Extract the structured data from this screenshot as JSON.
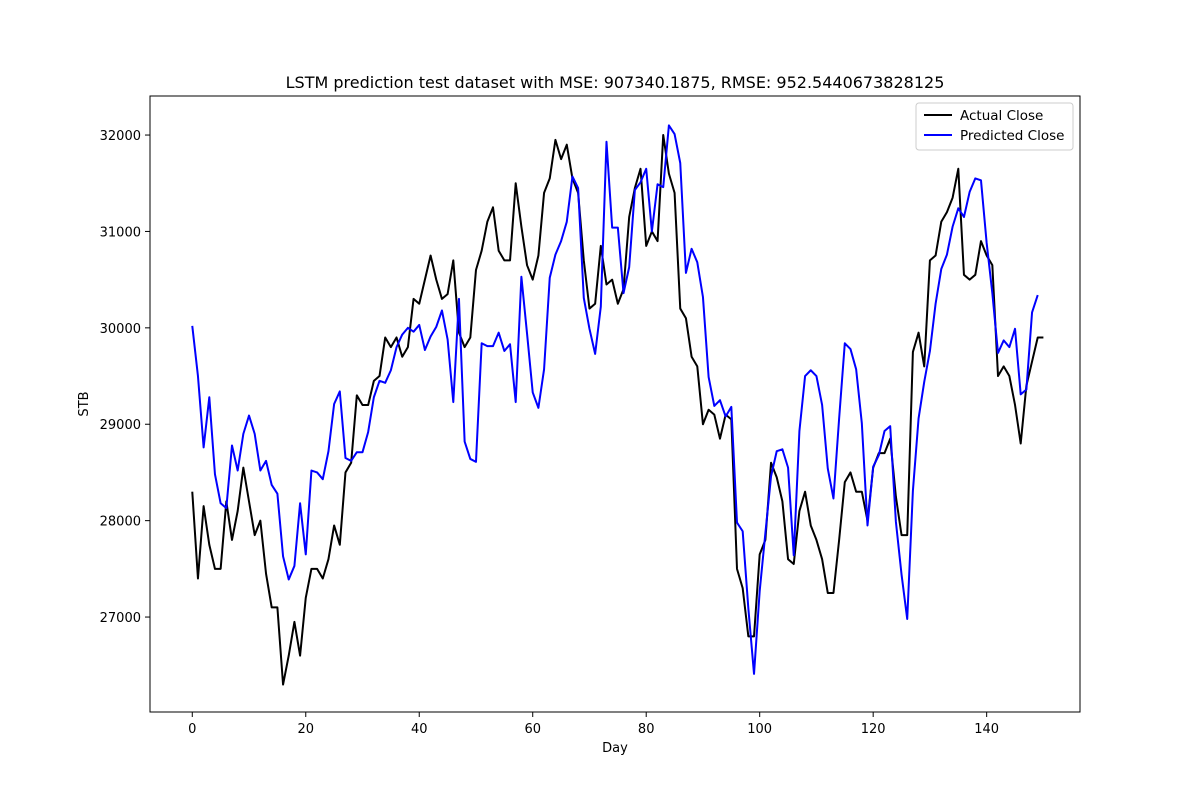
{
  "chart_data": {
    "type": "line",
    "title": "LSTM prediction test dataset with MSE: 907340.1875, RMSE: 952.5440673828125",
    "xlabel": "Day",
    "ylabel": "STB",
    "xlim": [
      -7.45,
      156.45
    ],
    "ylim": [
      26015,
      32405
    ],
    "xticks": [
      0,
      20,
      40,
      60,
      80,
      100,
      120,
      140
    ],
    "yticks": [
      27000,
      28000,
      29000,
      30000,
      31000,
      32000
    ],
    "grid": false,
    "legend_position": "top-right",
    "series": [
      {
        "name": "Actual Close",
        "color": "#000000",
        "values": [
          28300,
          27400,
          28150,
          27750,
          27500,
          27500,
          28200,
          27800,
          28100,
          28550,
          28200,
          27850,
          28000,
          27450,
          27100,
          27100,
          26300,
          26600,
          26950,
          26600,
          27200,
          27500,
          27500,
          27400,
          27600,
          27950,
          27750,
          28500,
          28600,
          29300,
          29200,
          29200,
          29450,
          29500,
          29900,
          29800,
          29900,
          29700,
          29800,
          30300,
          30250,
          30500,
          30750,
          30500,
          30300,
          30350,
          30700,
          29950,
          29800,
          29900,
          30600,
          30800,
          31100,
          31250,
          30800,
          30700,
          30700,
          31500,
          31050,
          30650,
          30500,
          30750,
          31400,
          31550,
          31950,
          31750,
          31900,
          31550,
          31400,
          30700,
          30200,
          30250,
          30850,
          30450,
          30500,
          30250,
          30400,
          31150,
          31450,
          31650,
          30850,
          31000,
          30900,
          32000,
          31600,
          31400,
          30200,
          30100,
          29700,
          29600,
          29000,
          29150,
          29100,
          28850,
          29100,
          29050,
          27500,
          27300,
          26800,
          26800,
          27650,
          27800,
          28600,
          28450,
          28200,
          27600,
          27550,
          28100,
          28300,
          27950,
          27800,
          27600,
          27250,
          27250,
          27800,
          28400,
          28500,
          28300,
          28300,
          28000,
          28550,
          28700,
          28700,
          28850,
          28250,
          27850,
          27850,
          29750,
          29950,
          29600,
          30700,
          30750,
          31100,
          31200,
          31350,
          31650,
          30550,
          30500,
          30550,
          30900,
          30750,
          30650,
          29500,
          29600,
          29500,
          29200,
          28800,
          29400,
          29650,
          29900,
          29900
        ]
      },
      {
        "name": "Predicted Close",
        "color": "#0000ff",
        "values": [
          30020,
          29500,
          28760,
          29280,
          28480,
          28180,
          28130,
          28780,
          28520,
          28900,
          29090,
          28900,
          28520,
          28620,
          28370,
          28280,
          27630,
          27390,
          27530,
          28180,
          27650,
          28520,
          28500,
          28430,
          28720,
          29210,
          29340,
          28650,
          28620,
          28710,
          28710,
          28920,
          29280,
          29450,
          29430,
          29560,
          29800,
          29930,
          30000,
          29960,
          30030,
          29770,
          29910,
          30010,
          30180,
          29880,
          29230,
          30300,
          28820,
          28640,
          28610,
          29840,
          29810,
          29810,
          29950,
          29760,
          29830,
          29230,
          30530,
          29940,
          29330,
          29170,
          29570,
          30520,
          30760,
          30900,
          31100,
          31570,
          31450,
          30310,
          29990,
          29730,
          30220,
          31930,
          31040,
          31040,
          30360,
          30630,
          31430,
          31510,
          31650,
          31000,
          31490,
          31460,
          32100,
          32010,
          31710,
          30570,
          30820,
          30680,
          30320,
          29490,
          29190,
          29250,
          29080,
          29180,
          27980,
          27890,
          27090,
          26410,
          27270,
          27870,
          28460,
          28720,
          28740,
          28550,
          27640,
          28930,
          29500,
          29560,
          29500,
          29200,
          28540,
          28230,
          29060,
          29840,
          29780,
          29570,
          29010,
          27950,
          28560,
          28680,
          28930,
          28980,
          27990,
          27440,
          26980,
          28310,
          29060,
          29440,
          29760,
          30250,
          30610,
          30760,
          31050,
          31240,
          31150,
          31410,
          31550,
          31530,
          30880,
          30360,
          29740,
          29870,
          29800,
          29990,
          29310,
          29360,
          30160,
          30340
        ]
      }
    ]
  }
}
